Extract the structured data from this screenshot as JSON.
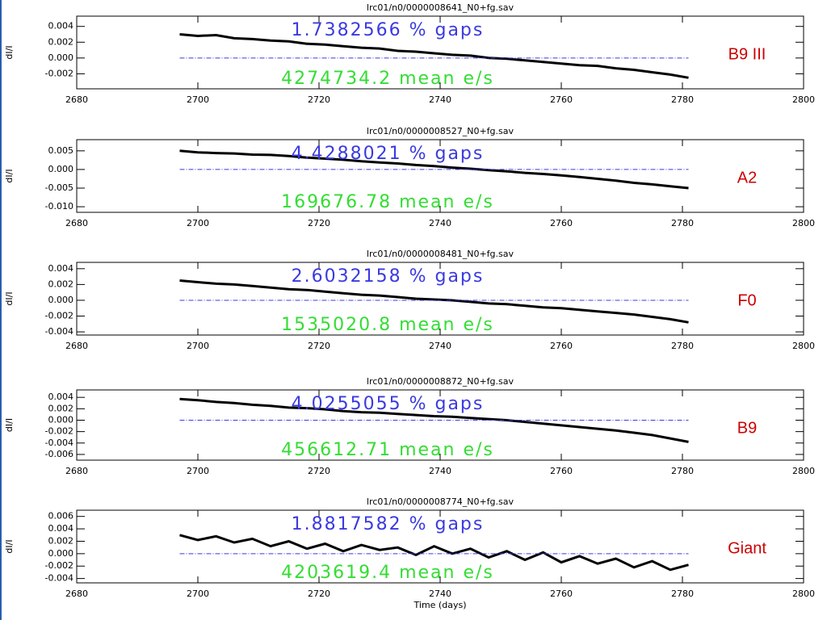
{
  "chart_data": [
    {
      "type": "line",
      "title": "lrc01/n0/0000008641_N0+fg.sav",
      "ylabel": "dI/I",
      "annotations": [
        "1.7382566 % gaps",
        "4274734.2 mean e/s"
      ],
      "annotation_colors": [
        "#3a3ae0",
        "#33dd33"
      ],
      "label": "B9 III",
      "label_color": "#cc0000",
      "xlim": [
        2680,
        2800
      ],
      "xticks": [
        2680,
        2700,
        2720,
        2740,
        2760,
        2780,
        2800
      ],
      "ylim": [
        -0.0039,
        0.0053
      ],
      "yticks": [
        0.004,
        0.002,
        {
          "value": 0,
          "label": "0.000"
        },
        -0.002
      ],
      "series": [
        {
          "color": "#000000",
          "x": [
            2697,
            2700,
            2703,
            2706,
            2709,
            2712,
            2715,
            2718,
            2721,
            2724,
            2727,
            2730,
            2733,
            2736,
            2739,
            2742,
            2745,
            2748,
            2751,
            2754,
            2757,
            2760,
            2763,
            2766,
            2769,
            2772,
            2775,
            2778,
            2781
          ],
          "values": [
            0.003,
            0.0028,
            0.0029,
            0.0025,
            0.0024,
            0.0022,
            0.0021,
            0.0018,
            0.0017,
            0.0015,
            0.0013,
            0.0012,
            0.0009,
            0.0008,
            0.0006,
            0.0004,
            0.0003,
            0.0,
            -0.0001,
            -0.0003,
            -0.0005,
            -0.0007,
            -0.0009,
            -0.001,
            -0.0013,
            -0.0015,
            -0.0018,
            -0.0021,
            -0.0025
          ]
        }
      ]
    },
    {
      "type": "line",
      "title": "lrc01/n0/0000008527_N0+fg.sav",
      "ylabel": "dI/I",
      "annotations": [
        "4.4288021 % gaps",
        "169676.78 mean e/s"
      ],
      "annotation_colors": [
        "#3a3ae0",
        "#33dd33"
      ],
      "label": "A2",
      "label_color": "#cc0000",
      "xlim": [
        2680,
        2800
      ],
      "xticks": [
        2680,
        2700,
        2720,
        2740,
        2760,
        2780,
        2800
      ],
      "ylim": [
        -0.0115,
        0.008
      ],
      "yticks": [
        0.005,
        {
          "value": 0,
          "label": "0.000"
        },
        -0.005,
        {
          "value": -0.01,
          "label": "-0.010"
        }
      ],
      "series": [
        {
          "color": "#000000",
          "x": [
            2697,
            2700,
            2703,
            2706,
            2709,
            2712,
            2715,
            2718,
            2721,
            2724,
            2727,
            2730,
            2733,
            2736,
            2739,
            2742,
            2745,
            2748,
            2751,
            2754,
            2757,
            2760,
            2763,
            2766,
            2769,
            2772,
            2775,
            2778,
            2781
          ],
          "values": [
            0.005,
            0.0046,
            0.0044,
            0.0043,
            0.004,
            0.0039,
            0.0036,
            0.0032,
            0.0029,
            0.0026,
            0.0022,
            0.0019,
            0.0016,
            0.0012,
            0.0009,
            0.0005,
            0.0002,
            -0.0002,
            -0.0005,
            -0.0009,
            -0.0012,
            -0.0016,
            -0.002,
            -0.0025,
            -0.003,
            -0.0036,
            -0.004,
            -0.0045,
            -0.005
          ]
        }
      ]
    },
    {
      "type": "line",
      "title": "lrc01/n0/0000008481_N0+fg.sav",
      "ylabel": "dI/I",
      "annotations": [
        "2.6032158 % gaps",
        "1535020.8 mean e/s"
      ],
      "annotation_colors": [
        "#3a3ae0",
        "#33dd33"
      ],
      "label": "F0",
      "label_color": "#cc0000",
      "xlim": [
        2680,
        2800
      ],
      "xticks": [
        2680,
        2700,
        2720,
        2740,
        2760,
        2780,
        2800
      ],
      "ylim": [
        -0.0044,
        0.0048
      ],
      "yticks": [
        0.004,
        0.002,
        {
          "value": 0,
          "label": "0.000"
        },
        -0.002,
        -0.004
      ],
      "series": [
        {
          "color": "#000000",
          "x": [
            2697,
            2700,
            2703,
            2706,
            2709,
            2712,
            2715,
            2718,
            2721,
            2724,
            2727,
            2730,
            2733,
            2736,
            2739,
            2742,
            2745,
            2748,
            2751,
            2754,
            2757,
            2760,
            2763,
            2766,
            2769,
            2772,
            2775,
            2778,
            2781
          ],
          "values": [
            0.0025,
            0.0023,
            0.0021,
            0.002,
            0.0018,
            0.0016,
            0.0014,
            0.0013,
            0.0011,
            0.0009,
            0.0007,
            0.0006,
            0.0004,
            0.0002,
            0.0001,
            0.0,
            -0.0002,
            -0.0004,
            -0.0005,
            -0.0007,
            -0.0009,
            -0.001,
            -0.0012,
            -0.0014,
            -0.0016,
            -0.0018,
            -0.0021,
            -0.0024,
            -0.0028
          ]
        }
      ]
    },
    {
      "type": "line",
      "title": "lrc01/n0/0000008872_N0+fg.sav",
      "ylabel": "dI/I",
      "annotations": [
        "4.0255055 % gaps",
        "456612.71 mean e/s"
      ],
      "annotation_colors": [
        "#3a3ae0",
        "#33dd33"
      ],
      "label": "B9",
      "label_color": "#cc0000",
      "xlim": [
        2680,
        2800
      ],
      "xticks": [
        2680,
        2700,
        2720,
        2740,
        2760,
        2780,
        2800
      ],
      "ylim": [
        -0.007,
        0.0053
      ],
      "yticks": [
        0.004,
        0.002,
        {
          "value": 0,
          "label": "0.000"
        },
        -0.002,
        -0.004,
        -0.006
      ],
      "series": [
        {
          "color": "#000000",
          "x": [
            2697,
            2700,
            2703,
            2706,
            2709,
            2712,
            2715,
            2718,
            2721,
            2724,
            2727,
            2730,
            2733,
            2736,
            2739,
            2742,
            2745,
            2748,
            2751,
            2754,
            2757,
            2760,
            2763,
            2766,
            2769,
            2772,
            2775,
            2778,
            2781
          ],
          "values": [
            0.0037,
            0.0035,
            0.0032,
            0.003,
            0.0027,
            0.0025,
            0.0022,
            0.0021,
            0.0019,
            0.0016,
            0.0014,
            0.0013,
            0.0011,
            0.0009,
            0.0007,
            0.0006,
            0.0004,
            0.0002,
            0.0,
            -0.0003,
            -0.0006,
            -0.0009,
            -0.0012,
            -0.0015,
            -0.0018,
            -0.0022,
            -0.0026,
            -0.0032,
            -0.0038
          ]
        }
      ]
    },
    {
      "type": "line",
      "title": "lrc01/n0/0000008774_N0+fg.sav",
      "ylabel": "dI/I",
      "xlabel": "Time (days)",
      "annotations": [
        "1.8817582 % gaps",
        "4203619.4 mean e/s"
      ],
      "annotation_colors": [
        "#3a3ae0",
        "#33dd33"
      ],
      "label": "Giant",
      "label_color": "#cc0000",
      "xlim": [
        2680,
        2800
      ],
      "xticks": [
        2680,
        2700,
        2720,
        2740,
        2760,
        2780,
        2800
      ],
      "ylim": [
        -0.0047,
        0.007
      ],
      "yticks": [
        0.006,
        0.004,
        0.002,
        {
          "value": 0,
          "label": "0.000"
        },
        -0.002,
        -0.004
      ],
      "series": [
        {
          "color": "#000000",
          "x": [
            2697,
            2700,
            2703,
            2706,
            2709,
            2712,
            2715,
            2718,
            2721,
            2724,
            2727,
            2730,
            2733,
            2736,
            2739,
            2742,
            2745,
            2748,
            2751,
            2754,
            2757,
            2760,
            2763,
            2766,
            2769,
            2772,
            2775,
            2778,
            2781
          ],
          "values": [
            0.003,
            0.0022,
            0.0028,
            0.0018,
            0.0024,
            0.0012,
            0.002,
            0.0008,
            0.0016,
            0.0004,
            0.0014,
            0.0006,
            0.001,
            -0.0002,
            0.0012,
            0.0,
            0.0008,
            -0.0006,
            0.0004,
            -0.001,
            0.0002,
            -0.0014,
            -0.0004,
            -0.0016,
            -0.0008,
            -0.0022,
            -0.0012,
            -0.0026,
            -0.0018
          ]
        }
      ]
    }
  ]
}
